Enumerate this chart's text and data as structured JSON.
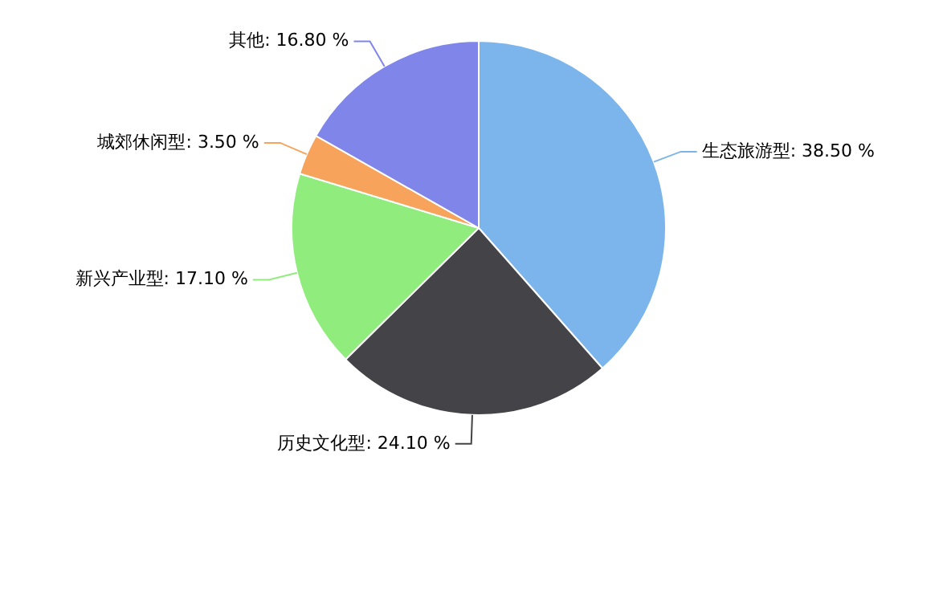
{
  "chart_data": {
    "type": "pie",
    "categories": [
      "生态旅游型",
      "历史文化型",
      "新兴产业型",
      "城郊休闲型",
      "其他"
    ],
    "values": [
      38.5,
      24.1,
      17.1,
      3.5,
      16.8
    ],
    "value_labels": [
      "38.50 %",
      "24.10 %",
      "17.10 %",
      "3.50 %",
      "16.80 %"
    ],
    "colors": [
      "#7cb5ec",
      "#434348",
      "#90ed7d",
      "#f7a35c",
      "#8085e9"
    ],
    "legend": false
  }
}
